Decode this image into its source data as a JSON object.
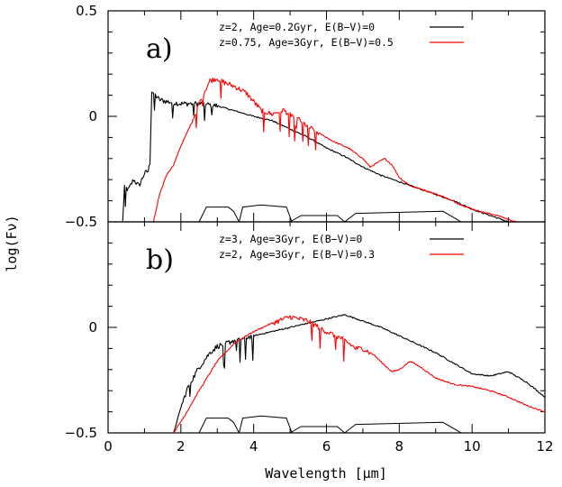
{
  "figure": {
    "xlabel": "Wavelength [μm]",
    "ylabel": "log(Fν)"
  },
  "chart_data": [
    {
      "type": "line",
      "panel_label": "a)",
      "xlim": [
        0,
        12
      ],
      "ylim": [
        -0.5,
        0.5
      ],
      "x_ticks": [
        "0",
        "2",
        "4",
        "6",
        "8",
        "10",
        "12"
      ],
      "y_ticks": [
        "-0.5",
        "0",
        "0.5"
      ],
      "legend_position": "top-right",
      "series": [
        {
          "name": "z=2, Age=0.2Gyr, E(B−V)=0",
          "color": "#000000",
          "noisy_range": [
            0.4,
            3.0
          ],
          "points": [
            [
              0.4,
              -0.5
            ],
            [
              0.45,
              -0.33
            ],
            [
              0.55,
              -0.35
            ],
            [
              0.7,
              -0.3
            ],
            [
              0.85,
              -0.33
            ],
            [
              1.0,
              -0.27
            ],
            [
              1.1,
              -0.26
            ],
            [
              1.15,
              -0.22
            ],
            [
              1.2,
              0.12
            ],
            [
              1.4,
              0.08
            ],
            [
              1.6,
              0.07
            ],
            [
              2.0,
              0.06
            ],
            [
              2.5,
              0.06
            ],
            [
              3.0,
              0.05
            ],
            [
              4.0,
              0.0
            ],
            [
              4.5,
              -0.02
            ],
            [
              5.0,
              -0.06
            ],
            [
              5.5,
              -0.1
            ],
            [
              6.0,
              -0.15
            ],
            [
              6.5,
              -0.19
            ],
            [
              7.0,
              -0.24
            ],
            [
              7.5,
              -0.28
            ],
            [
              8.0,
              -0.31
            ],
            [
              8.5,
              -0.34
            ],
            [
              9.0,
              -0.37
            ],
            [
              9.5,
              -0.4
            ],
            [
              10.0,
              -0.44
            ],
            [
              10.5,
              -0.47
            ],
            [
              11.0,
              -0.5
            ]
          ]
        },
        {
          "name": "z=0.75, Age=3Gyr, E(B−V)=0.5",
          "color": "#ff0000",
          "noisy_range": [
            2.4,
            5.8
          ],
          "points": [
            [
              1.25,
              -0.5
            ],
            [
              1.4,
              -0.38
            ],
            [
              1.6,
              -0.28
            ],
            [
              1.8,
              -0.23
            ],
            [
              2.0,
              -0.14
            ],
            [
              2.3,
              -0.03
            ],
            [
              2.6,
              0.1
            ],
            [
              2.8,
              0.17
            ],
            [
              3.0,
              0.18
            ],
            [
              3.2,
              0.16
            ],
            [
              3.5,
              0.14
            ],
            [
              3.8,
              0.11
            ],
            [
              4.0,
              0.07
            ],
            [
              4.2,
              0.03
            ],
            [
              4.5,
              0.01
            ],
            [
              4.8,
              0.03
            ],
            [
              5.0,
              0.01
            ],
            [
              5.2,
              -0.01
            ],
            [
              5.5,
              -0.05
            ],
            [
              5.8,
              -0.08
            ],
            [
              6.2,
              -0.12
            ],
            [
              6.6,
              -0.15
            ],
            [
              7.0,
              -0.2
            ],
            [
              7.2,
              -0.24
            ],
            [
              7.4,
              -0.22
            ],
            [
              7.6,
              -0.2
            ],
            [
              7.8,
              -0.23
            ],
            [
              8.0,
              -0.29
            ],
            [
              8.3,
              -0.33
            ],
            [
              8.7,
              -0.35
            ],
            [
              9.2,
              -0.38
            ],
            [
              9.7,
              -0.42
            ],
            [
              10.2,
              -0.45
            ],
            [
              10.7,
              -0.47
            ],
            [
              11.2,
              -0.5
            ]
          ]
        }
      ]
    },
    {
      "type": "line",
      "panel_label": "b)",
      "xlim": [
        0,
        12
      ],
      "ylim": [
        -0.5,
        0.5
      ],
      "x_ticks": [
        "0",
        "2",
        "4",
        "6",
        "8",
        "10",
        "12"
      ],
      "y_ticks": [
        "-0.5",
        "0"
      ],
      "legend_position": "top-right",
      "series": [
        {
          "name": "z=3, Age=3Gyr, E(B−V)=0",
          "color": "#000000",
          "noisy_range": [
            2.0,
            4.0
          ],
          "points": [
            [
              1.8,
              -0.5
            ],
            [
              2.0,
              -0.38
            ],
            [
              2.2,
              -0.28
            ],
            [
              2.5,
              -0.19
            ],
            [
              2.8,
              -0.12
            ],
            [
              3.0,
              -0.09
            ],
            [
              3.5,
              -0.06
            ],
            [
              4.0,
              -0.04
            ],
            [
              4.5,
              -0.02
            ],
            [
              5.0,
              0.0
            ],
            [
              5.5,
              0.02
            ],
            [
              6.0,
              0.04
            ],
            [
              6.5,
              0.06
            ],
            [
              7.0,
              0.03
            ],
            [
              7.5,
              0.0
            ],
            [
              8.0,
              -0.04
            ],
            [
              8.5,
              -0.08
            ],
            [
              9.0,
              -0.12
            ],
            [
              9.5,
              -0.17
            ],
            [
              10.0,
              -0.22
            ],
            [
              10.5,
              -0.23
            ],
            [
              11.0,
              -0.21
            ],
            [
              11.5,
              -0.26
            ],
            [
              12.0,
              -0.33
            ]
          ]
        },
        {
          "name": "z=2, Age=3Gyr, E(B−V)=0.3",
          "color": "#ff0000",
          "noisy_range": [
            4.5,
            7.2
          ],
          "points": [
            [
              1.8,
              -0.5
            ],
            [
              2.1,
              -0.42
            ],
            [
              2.5,
              -0.3
            ],
            [
              3.0,
              -0.16
            ],
            [
              3.5,
              -0.07
            ],
            [
              4.0,
              -0.02
            ],
            [
              4.5,
              0.02
            ],
            [
              5.0,
              0.05
            ],
            [
              5.5,
              0.03
            ],
            [
              6.0,
              -0.02
            ],
            [
              6.5,
              -0.06
            ],
            [
              6.8,
              -0.1
            ],
            [
              7.0,
              -0.1
            ],
            [
              7.3,
              -0.13
            ],
            [
              7.6,
              -0.18
            ],
            [
              7.8,
              -0.21
            ],
            [
              8.0,
              -0.2
            ],
            [
              8.3,
              -0.16
            ],
            [
              8.6,
              -0.19
            ],
            [
              9.0,
              -0.24
            ],
            [
              9.5,
              -0.27
            ],
            [
              10.0,
              -0.28
            ],
            [
              10.5,
              -0.3
            ],
            [
              11.0,
              -0.33
            ],
            [
              11.5,
              -0.37
            ],
            [
              12.0,
              -0.4
            ]
          ]
        }
      ]
    }
  ]
}
